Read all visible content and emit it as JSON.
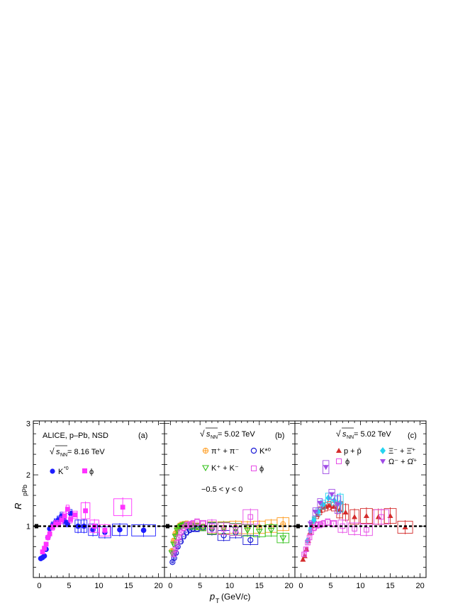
{
  "figure": {
    "y_axis_label": "R",
    "y_axis_label_sub": "pPb",
    "x_axis_label_p": "p",
    "x_axis_label_sub": "T",
    "x_axis_label_unit": "(GeV/c)",
    "y_ticks": [
      "1",
      "2",
      "3"
    ],
    "x_ticks": [
      "0",
      "5",
      "10",
      "15",
      "20"
    ]
  },
  "panels": {
    "a": {
      "tag": "(a)",
      "header": "ALICE, p–Pb, NSD",
      "energy_prefix": "√",
      "energy_sym": "s",
      "energy_sub": "NN",
      "energy_value": " = 8.16 TeV",
      "legend": [
        {
          "label": "K*0",
          "text": "K",
          "sup": "*0"
        },
        {
          "label": "ϕ",
          "text": "ϕ",
          "sup": ""
        }
      ]
    },
    "b": {
      "tag": "(b)",
      "energy_prefix": "√",
      "energy_sym": "s",
      "energy_sub": "NN",
      "energy_value": " = 5.02 TeV",
      "rapidity": "−0.5 < y < 0",
      "legend": [
        {
          "label": "π+ + π-",
          "text": "π⁺ + π⁻"
        },
        {
          "label": "K*0",
          "text": "K*⁰"
        },
        {
          "label": "K+ + K-",
          "text": "K⁺ + K⁻"
        },
        {
          "label": "ϕ",
          "text": "ϕ"
        }
      ]
    },
    "c": {
      "tag": "(c)",
      "energy_prefix": "√",
      "energy_sym": "s",
      "energy_sub": "NN",
      "energy_value": " = 5.02 TeV",
      "legend": [
        {
          "label": "p + p̄",
          "text": "p + p̄"
        },
        {
          "label": "Ξ- + Ξ̄+",
          "text": "Ξ⁻ + Ξ̄⁺"
        },
        {
          "label": "ϕ",
          "text": "ϕ"
        },
        {
          "label": "Ω- + Ω̄+",
          "text": "Ω⁻ + Ω̄⁺"
        }
      ]
    }
  },
  "colors": {
    "kstar_a": "#1d1dff",
    "phi_a": "#ff33ff",
    "pion": "#ff9a1a",
    "kstar_b": "#1a1ad6",
    "kaon": "#33c11a",
    "phi_b": "#e64ce6",
    "proton": "#d42b2b",
    "xi": "#25d4f0",
    "omega": "#a04ce6",
    "phi_c": "#e64ce6"
  },
  "chart_data": [
    {
      "type": "scatter",
      "panel": "a",
      "xlim": [
        -1,
        21
      ],
      "ylim": [
        0,
        3.05
      ],
      "reference_line": 1,
      "series": [
        {
          "name": "K*0",
          "marker": "filled-circle",
          "x": [
            0.25,
            0.55,
            0.85,
            1.15,
            1.45,
            1.75,
            2.25,
            2.75,
            3.25,
            3.75,
            4.25,
            4.75,
            5.25,
            6.5,
            7.5,
            9.0,
            11.0,
            13.5,
            17.5
          ],
          "y": [
            0.37,
            0.39,
            0.42,
            0.55,
            0.78,
            0.95,
            1.02,
            1.08,
            1.13,
            1.2,
            1.1,
            1.05,
            1.25,
            1.0,
            1.0,
            0.93,
            0.88,
            0.93,
            0.92
          ]
        },
        {
          "name": "ϕ",
          "marker": "filled-square",
          "x": [
            0.55,
            0.85,
            1.15,
            1.45,
            1.75,
            2.25,
            2.75,
            3.25,
            3.75,
            4.25,
            4.75,
            5.25,
            6.0,
            7.75,
            9.25,
            11.0,
            14.0
          ],
          "y": [
            0.5,
            0.57,
            0.65,
            0.78,
            0.85,
            0.98,
            1.05,
            1.05,
            1.12,
            1.2,
            1.33,
            1.13,
            1.22,
            1.3,
            1.0,
            0.92,
            1.37
          ]
        }
      ]
    },
    {
      "type": "scatter",
      "panel": "b",
      "xlim": [
        -1,
        21
      ],
      "ylim": [
        0,
        3.05
      ],
      "reference_line": 1,
      "rapidity": "-0.5 < y < 0",
      "series": [
        {
          "name": "π+ + π-",
          "marker": "open-cross-circle",
          "x": [
            0.25,
            0.55,
            0.85,
            1.15,
            1.45,
            1.75,
            2.25,
            2.75,
            3.5,
            4.5,
            5.5,
            7.0,
            9.0,
            11.0,
            13.0,
            15.0,
            17.0,
            19.0
          ],
          "y": [
            0.52,
            0.72,
            0.86,
            0.95,
            1.0,
            1.02,
            1.03,
            1.04,
            1.02,
            1.0,
            0.98,
            0.97,
            0.97,
            0.98,
            0.97,
            0.98,
            1.0,
            1.04
          ]
        },
        {
          "name": "K*0",
          "marker": "open-circle",
          "x": [
            0.35,
            0.65,
            0.95,
            1.25,
            1.75,
            2.25,
            2.75,
            3.25,
            3.75,
            4.5,
            5.5,
            7.0,
            9.0,
            11.0,
            13.5
          ],
          "y": [
            0.3,
            0.38,
            0.48,
            0.6,
            0.7,
            0.8,
            0.88,
            0.93,
            0.95,
            0.95,
            0.97,
            0.95,
            0.82,
            0.88,
            0.73
          ]
        },
        {
          "name": "K+ + K-",
          "marker": "open-triangle-down",
          "x": [
            0.25,
            0.55,
            0.85,
            1.15,
            1.45,
            1.75,
            2.25,
            2.75,
            3.5,
            4.5,
            5.5,
            7.0,
            9.0,
            11.0,
            13.0,
            15.0,
            17.0,
            19.0
          ],
          "y": [
            0.48,
            0.65,
            0.8,
            0.92,
            0.97,
            1.0,
            1.02,
            1.02,
            1.0,
            0.99,
            0.97,
            0.96,
            0.96,
            0.94,
            0.92,
            0.9,
            0.92,
            0.77
          ]
        },
        {
          "name": "ϕ",
          "marker": "open-square",
          "x": [
            0.55,
            0.85,
            1.15,
            1.45,
            1.75,
            2.25,
            2.75,
            3.25,
            3.75,
            4.5,
            5.5,
            7.0,
            9.0,
            11.0,
            13.5
          ],
          "y": [
            0.45,
            0.55,
            0.68,
            0.78,
            0.88,
            0.97,
            1.02,
            1.03,
            1.05,
            1.08,
            1.05,
            1.0,
            0.95,
            0.93,
            1.18
          ]
        }
      ]
    },
    {
      "type": "scatter",
      "panel": "c",
      "xlim": [
        -1,
        21
      ],
      "ylim": [
        0,
        3.05
      ],
      "reference_line": 1,
      "series": [
        {
          "name": "p + p̄",
          "marker": "filled-triangle-up",
          "x": [
            0.35,
            0.65,
            0.95,
            1.25,
            1.55,
            1.85,
            2.25,
            2.75,
            3.25,
            3.75,
            4.25,
            4.75,
            5.5,
            6.5,
            7.5,
            9.0,
            11.0,
            13.0,
            15.0,
            17.5
          ],
          "y": [
            0.35,
            0.42,
            0.55,
            0.72,
            0.88,
            1.0,
            1.12,
            1.22,
            1.3,
            1.36,
            1.38,
            1.4,
            1.38,
            1.32,
            1.27,
            1.18,
            1.2,
            1.18,
            1.2,
            0.98
          ]
        },
        {
          "name": "Ξ- + Ξ̄+",
          "marker": "filled-diamond",
          "x": [
            1.1,
            1.6,
            2.2,
            2.9,
            3.7,
            4.6,
            5.6,
            6.6
          ],
          "y": [
            0.72,
            0.92,
            1.12,
            1.28,
            1.42,
            1.55,
            1.5,
            1.45
          ]
        },
        {
          "name": "ϕ",
          "marker": "open-square",
          "x": [
            0.55,
            0.85,
            1.15,
            1.45,
            1.75,
            2.25,
            2.75,
            3.25,
            3.75,
            4.5,
            5.5,
            7.0,
            9.0,
            11.0,
            13.5
          ],
          "y": [
            0.45,
            0.55,
            0.68,
            0.78,
            0.88,
            0.97,
            1.02,
            1.03,
            1.05,
            1.08,
            1.05,
            1.0,
            0.95,
            0.93,
            1.18
          ]
        },
        {
          "name": "Ω- + Ω̄+",
          "marker": "filled-triangle-down",
          "x": [
            1.6,
            2.4,
            3.2,
            4.2,
            5.2,
            6.2
          ],
          "y": [
            1.05,
            1.28,
            1.45,
            2.15,
            1.62,
            1.42
          ]
        }
      ]
    }
  ]
}
